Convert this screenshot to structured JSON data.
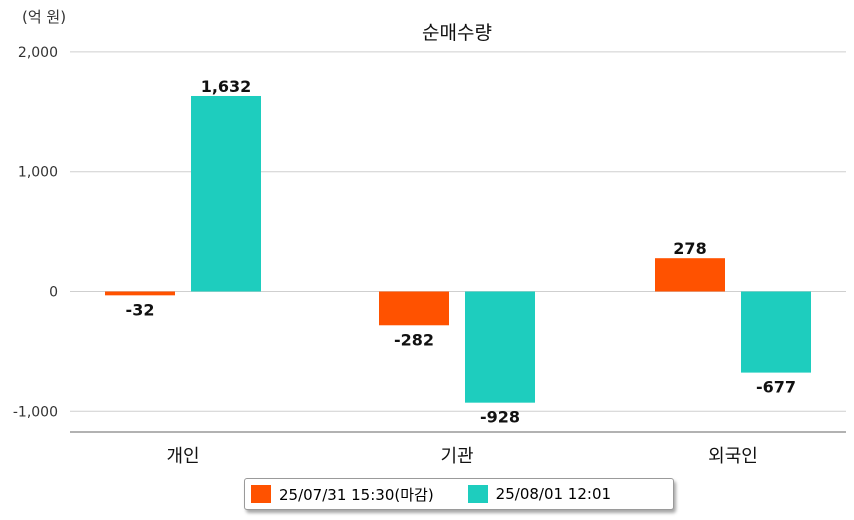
{
  "chart_data": {
    "type": "bar",
    "title": "순매수량",
    "unit_label": "(억 원)",
    "categories": [
      "개인",
      "기관",
      "외국인"
    ],
    "series": [
      {
        "name": "25/07/31 15:30(마감)",
        "color": "#ff5200",
        "values": [
          -32,
          -282,
          278
        ],
        "labels": [
          "-32",
          "-282",
          "278"
        ]
      },
      {
        "name": "25/08/01 12:01",
        "color": "#1ecdbe",
        "values": [
          1632,
          -928,
          -677
        ],
        "labels": [
          "1,632",
          "-928",
          "-677"
        ]
      }
    ],
    "ylim": [
      -1150,
      2000
    ],
    "yticks": [
      2000,
      1000,
      0,
      -1000
    ],
    "ytick_labels": [
      "2,000",
      "1,000",
      "0",
      "-1,000"
    ],
    "grid": true,
    "legend_position": "bottom"
  }
}
